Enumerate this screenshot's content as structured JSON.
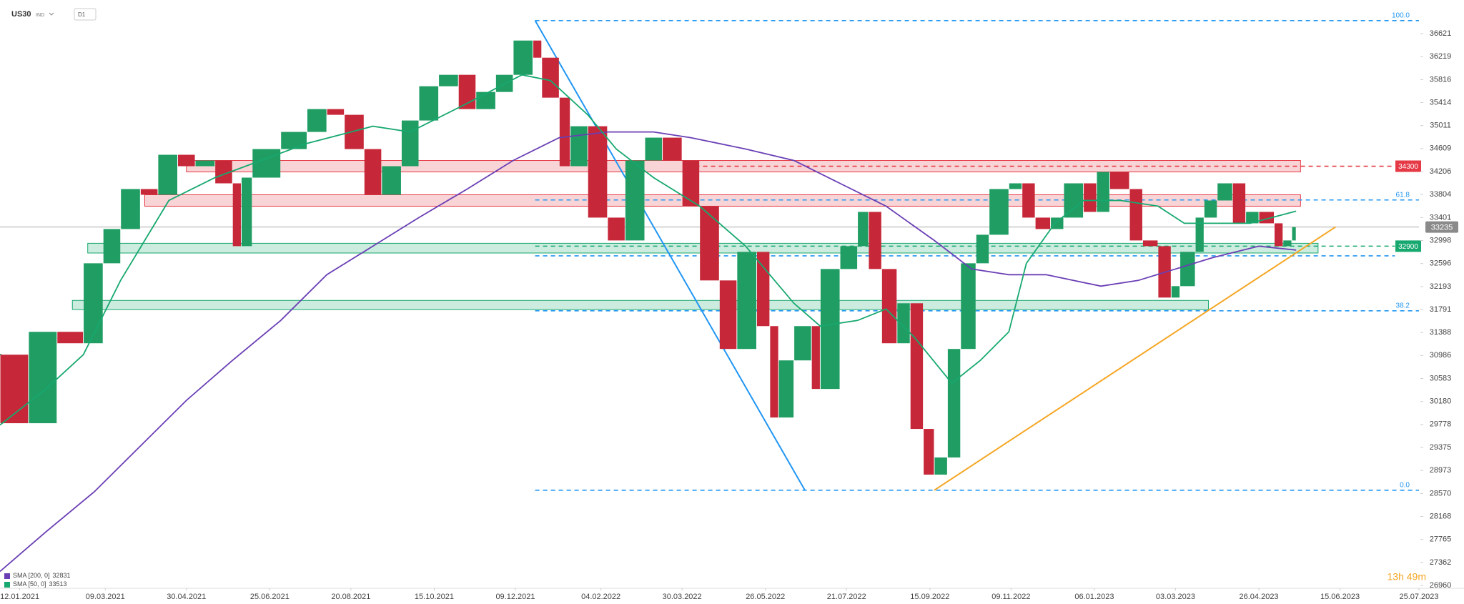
{
  "chart_data": {
    "type": "candlestick",
    "symbol": "US30",
    "market": "IND",
    "timeframe": "D1",
    "xlim": [
      0,
      647
    ],
    "ylim": [
      26910,
      37210
    ],
    "xticks": [
      {
        "value": 9,
        "label": "12.01.2021"
      },
      {
        "value": 48,
        "label": "09.03.2021"
      },
      {
        "value": 85,
        "label": "30.04.2021"
      },
      {
        "value": 123,
        "label": "25.06.2021"
      },
      {
        "value": 160,
        "label": "20.08.2021"
      },
      {
        "value": 198,
        "label": "15.10.2021"
      },
      {
        "value": 235,
        "label": "09.12.2021"
      },
      {
        "value": 274,
        "label": "04.02.2022"
      },
      {
        "value": 311,
        "label": "30.03.2022"
      },
      {
        "value": 349,
        "label": "26.05.2022"
      },
      {
        "value": 386,
        "label": "21.07.2022"
      },
      {
        "value": 424,
        "label": "15.09.2022"
      },
      {
        "value": 461,
        "label": "09.11.2022"
      },
      {
        "value": 499,
        "label": "06.01.2023"
      },
      {
        "value": 536,
        "label": "03.03.2023"
      },
      {
        "value": 574,
        "label": "26.04.2023"
      },
      {
        "value": 611,
        "label": "15.06.2023"
      },
      {
        "value": 647,
        "label": "25.07.2023"
      }
    ],
    "yticks": [
      36621,
      36219,
      35816,
      35414,
      35011,
      34609,
      34206,
      33804,
      33401,
      32998,
      32596,
      32193,
      31791,
      31388,
      30986,
      30583,
      30180,
      29778,
      29375,
      28973,
      28570,
      28168,
      27765,
      27362,
      26960
    ],
    "price": {
      "up_color": "#1f9d63",
      "down_color": "#c62839",
      "x": [
        0,
        13,
        26,
        38,
        47,
        55,
        64,
        72,
        81,
        89,
        98,
        106,
        110,
        115,
        128,
        140,
        149,
        157,
        166,
        174,
        183,
        191,
        200,
        209,
        217,
        226,
        234,
        243,
        247,
        255,
        260,
        268,
        277,
        285,
        294,
        302,
        311,
        319,
        328,
        336,
        345,
        351,
        355,
        362,
        370,
        374,
        383,
        391,
        396,
        402,
        409,
        415,
        421,
        426,
        432,
        438,
        445,
        451,
        460,
        466,
        472,
        479,
        485,
        494,
        500,
        506,
        515,
        521,
        528,
        534,
        538,
        545,
        549,
        555,
        562,
        568,
        574,
        581,
        585,
        589,
        591
      ],
      "close": [
        31000,
        29800,
        31400,
        31200,
        32600,
        33200,
        33900,
        33800,
        34500,
        34300,
        34400,
        34000,
        32900,
        34100,
        34600,
        34900,
        35300,
        35200,
        34600,
        33800,
        34300,
        35100,
        35700,
        35900,
        35300,
        35600,
        35900,
        36500,
        36200,
        35500,
        34300,
        35000,
        33400,
        33000,
        34400,
        34800,
        34400,
        33600,
        32300,
        31100,
        32800,
        31500,
        29900,
        30900,
        31500,
        30400,
        32500,
        32900,
        33500,
        32500,
        31200,
        31900,
        29700,
        28900,
        29200,
        31100,
        32600,
        33100,
        33900,
        34000,
        33400,
        33200,
        33400,
        34000,
        33500,
        34200,
        33900,
        33000,
        32900,
        32000,
        32200,
        32800,
        33400,
        33700,
        34000,
        33300,
        33500,
        33300,
        32900,
        33000,
        33235
      ]
    },
    "last_price": {
      "value": 33235,
      "color": "#8a8a8a"
    },
    "sma": [
      {
        "name": "SMA [200, 0]",
        "value": 32831,
        "color": "#6a3fb5",
        "x": [
          0,
          21,
          43,
          64,
          85,
          106,
          128,
          149,
          170,
          191,
          213,
          234,
          255,
          277,
          298,
          315,
          340,
          362,
          383,
          404,
          426,
          443,
          460,
          477,
          502,
          519,
          536,
          553,
          574,
          591
        ],
        "values": [
          27205,
          27900,
          28600,
          29400,
          30200,
          30900,
          31600,
          32400,
          32900,
          33400,
          33900,
          34400,
          34800,
          34900,
          34900,
          34800,
          34600,
          34400,
          34000,
          33600,
          33000,
          32500,
          32400,
          32400,
          32200,
          32300,
          32500,
          32700,
          32900,
          32831
        ]
      },
      {
        "name": "SMA [50, 0]",
        "value": 33513,
        "color": "#17a86f",
        "x": [
          0,
          21,
          38,
          55,
          77,
          98,
          119,
          140,
          170,
          187,
          213,
          238,
          251,
          268,
          281,
          298,
          319,
          340,
          362,
          374,
          391,
          404,
          417,
          434,
          447,
          460,
          468,
          481,
          494,
          511,
          528,
          540,
          553,
          570,
          591
        ],
        "values": [
          29770,
          30400,
          31000,
          32300,
          33700,
          34100,
          34400,
          34700,
          35000,
          34900,
          35400,
          35900,
          35800,
          35200,
          34600,
          34100,
          33600,
          32900,
          31900,
          31500,
          31600,
          31800,
          31300,
          30500,
          30900,
          31400,
          32600,
          33300,
          33700,
          33700,
          33600,
          33300,
          33300,
          33300,
          33513
        ]
      }
    ],
    "zones": [
      {
        "x": [
          85,
          593
        ],
        "y": [
          34200,
          34400
        ],
        "color": "#e53945"
      },
      {
        "x": [
          66,
          593
        ],
        "y": [
          33600,
          33800
        ],
        "color": "#e53945"
      },
      {
        "x": [
          40,
          601
        ],
        "y": [
          32780,
          32950
        ],
        "color": "#17a86f"
      },
      {
        "x": [
          33,
          551
        ],
        "y": [
          31790,
          31950
        ],
        "color": "#17a86f"
      }
    ],
    "dashed_lines": [
      {
        "label": "100.0",
        "value": 36850,
        "x": [
          244,
          647
        ],
        "color": "#2196f3"
      },
      {
        "label": "61.8",
        "value": 33709,
        "x": [
          244,
          647
        ],
        "color": "#2196f3"
      },
      {
        "label": "38.2",
        "value": 31768,
        "x": [
          244,
          647
        ],
        "color": "#2196f3"
      },
      {
        "label": "0.0",
        "value": 28627,
        "x": [
          244,
          647
        ],
        "color": "#2196f3"
      },
      {
        "value": 32730,
        "x": [
          244,
          636
        ],
        "color": "#2196f3"
      },
      {
        "value": 34300,
        "x": [
          317,
          636
        ],
        "color": "#e53945",
        "tag": true
      },
      {
        "value": 32900,
        "x": [
          244,
          636
        ],
        "color": "#17a86f",
        "tag": true
      }
    ],
    "trend_lines": [
      {
        "x": [
          244,
          367
        ],
        "y": [
          36850,
          28627
        ],
        "color": "#2196f3"
      },
      {
        "x": [
          426,
          609
        ],
        "y": [
          28627,
          33237
        ],
        "color": "#f5a623"
      }
    ],
    "timer": "13h 49m",
    "timer_color": "#f5a623"
  }
}
